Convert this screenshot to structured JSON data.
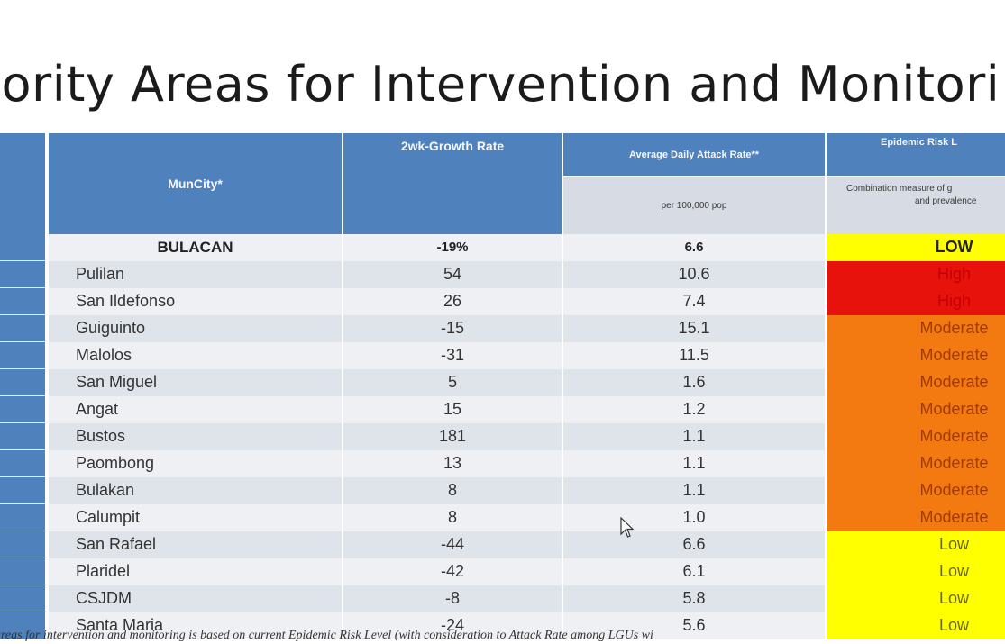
{
  "title": "iority Areas for Intervention and Monitori",
  "table": {
    "headers": {
      "muncity": "MunCity*",
      "growth": "2wk-Growth Rate",
      "attack": "Average Daily Attack Rate**",
      "attack_sub": "per 100,000 pop",
      "risk": "Epidemic Risk L",
      "risk_sub_1": "Combination measure of g",
      "risk_sub_2": "and prevalence"
    },
    "province": {
      "name": "BULACAN",
      "growth": "-19%",
      "attack": "6.6",
      "risk": "LOW"
    },
    "rows": [
      {
        "name": "Pulilan",
        "growth": "54",
        "attack": "10.6",
        "risk": "High"
      },
      {
        "name": "San Ildefonso",
        "growth": "26",
        "attack": "7.4",
        "risk": "High"
      },
      {
        "name": "Guiguinto",
        "growth": "-15",
        "attack": "15.1",
        "risk": "Moderate"
      },
      {
        "name": "Malolos",
        "growth": "-31",
        "attack": "11.5",
        "risk": "Moderate"
      },
      {
        "name": "San Miguel",
        "growth": "5",
        "attack": "1.6",
        "risk": "Moderate"
      },
      {
        "name": "Angat",
        "growth": "15",
        "attack": "1.2",
        "risk": "Moderate"
      },
      {
        "name": "Bustos",
        "growth": "181",
        "attack": "1.1",
        "risk": "Moderate"
      },
      {
        "name": "Paombong",
        "growth": "13",
        "attack": "1.1",
        "risk": "Moderate"
      },
      {
        "name": "Bulakan",
        "growth": "8",
        "attack": "1.1",
        "risk": "Moderate"
      },
      {
        "name": "Calumpit",
        "growth": "8",
        "attack": "1.0",
        "risk": "Moderate"
      },
      {
        "name": "San Rafael",
        "growth": "-44",
        "attack": "6.6",
        "risk": "Low"
      },
      {
        "name": "Plaridel",
        "growth": "-42",
        "attack": "6.1",
        "risk": "Low"
      },
      {
        "name": "CSJDM",
        "growth": "-8",
        "attack": "5.8",
        "risk": "Low"
      },
      {
        "name": "Santa Maria",
        "growth": "-24",
        "attack": "5.6",
        "risk": "Low"
      }
    ],
    "risk_colors": {
      "High": "#e8120c",
      "Moderate": "#f27a10",
      "Low": "#ffff00"
    }
  },
  "footnote": "areas for intervention and monitoring is based on current Epidemic Risk Level (with consideration to Attack Rate among LGUs wi"
}
